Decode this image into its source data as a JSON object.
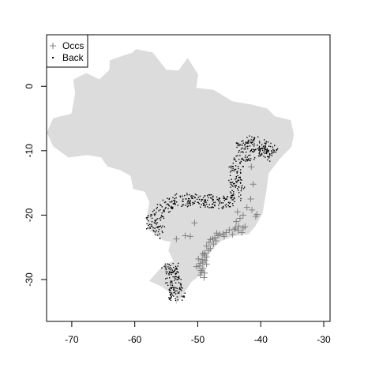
{
  "chart_data": {
    "type": "scatter",
    "title": "",
    "xlabel": "",
    "ylabel": "",
    "xlim": [
      -74,
      -29
    ],
    "ylim": [
      -36.5,
      8
    ],
    "x_ticks": [
      -70,
      -60,
      -50,
      -40,
      -30
    ],
    "y_ticks": [
      0,
      -10,
      -20,
      -30
    ],
    "x_tick_labels": [
      "-70",
      "-60",
      "-50",
      "-40",
      "-30"
    ],
    "y_tick_labels": [
      "0",
      "-10",
      "-20",
      "-30"
    ],
    "legend_position": "top-left",
    "legend": [
      {
        "label": "Occs",
        "symbol": "+"
      },
      {
        "label": "Back",
        "symbol": "."
      }
    ],
    "colors": {
      "land": "#dcdcdc",
      "occs": "#808080",
      "back": "#000000",
      "frame": "#000000"
    },
    "region_outline": [
      [
        -60.3,
        5.2
      ],
      [
        -59.8,
        5.7
      ],
      [
        -57.2,
        5.2
      ],
      [
        -55.0,
        2.5
      ],
      [
        -53.0,
        2.4
      ],
      [
        -51.6,
        4.3
      ],
      [
        -50.0,
        1.8
      ],
      [
        -50.3,
        -0.3
      ],
      [
        -47.5,
        -0.6
      ],
      [
        -44.5,
        -2.4
      ],
      [
        -41.5,
        -2.9
      ],
      [
        -39.0,
        -3.5
      ],
      [
        -37.8,
        -4.7
      ],
      [
        -35.3,
        -5.3
      ],
      [
        -34.8,
        -7.5
      ],
      [
        -35.2,
        -9.4
      ],
      [
        -37.0,
        -11.2
      ],
      [
        -38.8,
        -13.5
      ],
      [
        -39.2,
        -16.5
      ],
      [
        -39.8,
        -19.8
      ],
      [
        -41.0,
        -21.8
      ],
      [
        -42.0,
        -22.9
      ],
      [
        -44.5,
        -23.2
      ],
      [
        -46.4,
        -24.0
      ],
      [
        -48.0,
        -25.5
      ],
      [
        -48.7,
        -27.2
      ],
      [
        -49.0,
        -28.7
      ],
      [
        -51.0,
        -30.3
      ],
      [
        -52.3,
        -32.2
      ],
      [
        -53.4,
        -33.7
      ],
      [
        -53.5,
        -32.5
      ],
      [
        -55.8,
        -31.0
      ],
      [
        -57.6,
        -30.2
      ],
      [
        -55.6,
        -28.0
      ],
      [
        -53.8,
        -27.1
      ],
      [
        -54.6,
        -25.5
      ],
      [
        -54.2,
        -24.1
      ],
      [
        -55.4,
        -23.9
      ],
      [
        -57.9,
        -22.1
      ],
      [
        -58.0,
        -20.2
      ],
      [
        -57.6,
        -18.0
      ],
      [
        -58.4,
        -16.3
      ],
      [
        -60.2,
        -15.9
      ],
      [
        -60.6,
        -13.9
      ],
      [
        -62.2,
        -13.0
      ],
      [
        -64.3,
        -12.4
      ],
      [
        -65.3,
        -11.0
      ],
      [
        -67.5,
        -10.6
      ],
      [
        -70.5,
        -11.0
      ],
      [
        -72.9,
        -9.3
      ],
      [
        -73.9,
        -7.2
      ],
      [
        -72.9,
        -5.0
      ],
      [
        -70.0,
        -4.3
      ],
      [
        -69.4,
        -1.1
      ],
      [
        -69.7,
        1.0
      ],
      [
        -67.7,
        2.0
      ],
      [
        -65.6,
        1.0
      ],
      [
        -64.0,
        2.5
      ],
      [
        -63.9,
        4.0
      ],
      [
        -60.3,
        5.2
      ]
    ],
    "series": [
      {
        "name": "Occs",
        "marker": "+",
        "x": [
          -41.5,
          -41.2,
          -41.6,
          -42.2,
          -40.6,
          -43.7,
          -43.3,
          -42.8,
          -43.9,
          -41.4,
          -40.8,
          -42.5,
          -43.5,
          -44.0,
          -43.0,
          -45.0,
          -44.5,
          -43.6,
          -44.2,
          -42.8,
          -45.5,
          -46.0,
          -45.8,
          -46.5,
          -47.0,
          -47.3,
          -46.8,
          -47.6,
          -48.0,
          -47.1,
          -47.5,
          -48.2,
          -48.6,
          -48.0,
          -48.3,
          -48.9,
          -49.0,
          -48.6,
          -49.3,
          -48.8,
          -49.2,
          -49.6,
          -49.8,
          -50.2,
          -49.2,
          -49.5,
          -49.4,
          -48.9,
          -49.6,
          -49.0,
          -49.2,
          -48.6,
          -49.9,
          -51.2,
          -52.0,
          -53.4,
          -50.5
        ],
        "y": [
          -12.5,
          -15.2,
          -17.5,
          -18.8,
          -19.9,
          -19.5,
          -20.5,
          -20.0,
          -21.0,
          -19.2,
          -20.2,
          -21.8,
          -21.7,
          -22.0,
          -22.7,
          -22.3,
          -23.0,
          -22.4,
          -22.2,
          -22.0,
          -22.7,
          -22.9,
          -23.3,
          -23.0,
          -22.8,
          -23.5,
          -23.2,
          -23.7,
          -23.8,
          -24.0,
          -24.5,
          -24.2,
          -24.8,
          -25.2,
          -25.5,
          -25.9,
          -26.2,
          -26.5,
          -26.9,
          -27.0,
          -27.3,
          -27.5,
          -27.9,
          -28.0,
          -28.3,
          -28.6,
          -28.9,
          -29.0,
          -29.3,
          -29.7,
          -26.0,
          -27.6,
          -26.8,
          -23.3,
          -23.2,
          -23.7,
          -21.2
        ]
      },
      {
        "name": "Back",
        "marker": ".",
        "band_centerline": [
          [
            -43.5,
            -9.8
          ],
          [
            -42.0,
            -8.9
          ],
          [
            -40.2,
            -8.7
          ],
          [
            -38.6,
            -9.6
          ],
          [
            -38.1,
            -10.6
          ],
          [
            -40.2,
            -10.3
          ],
          [
            -42.5,
            -10.8
          ],
          [
            -43.9,
            -12.2
          ],
          [
            -44.1,
            -14.0
          ],
          [
            -43.7,
            -16.2
          ],
          [
            -44.3,
            -17.6
          ],
          [
            -46.6,
            -18.2
          ],
          [
            -48.6,
            -17.8
          ],
          [
            -50.6,
            -17.8
          ],
          [
            -52.6,
            -17.7
          ],
          [
            -54.6,
            -18.3
          ],
          [
            -56.2,
            -19.5
          ],
          [
            -57.4,
            -21.2
          ],
          [
            -57.0,
            -22.2
          ],
          [
            -55.6,
            -22.6
          ]
        ],
        "band_halfwidth": 1.0,
        "band_count": 560,
        "patch_centerline": [
          [
            -54.2,
            -27.5
          ],
          [
            -54.4,
            -28.7
          ],
          [
            -54.0,
            -29.8
          ],
          [
            -53.6,
            -31.0
          ],
          [
            -53.3,
            -32.2
          ],
          [
            -53.3,
            -33.2
          ]
        ],
        "patch_halfwidth": 1.2,
        "patch_count": 150
      }
    ]
  }
}
